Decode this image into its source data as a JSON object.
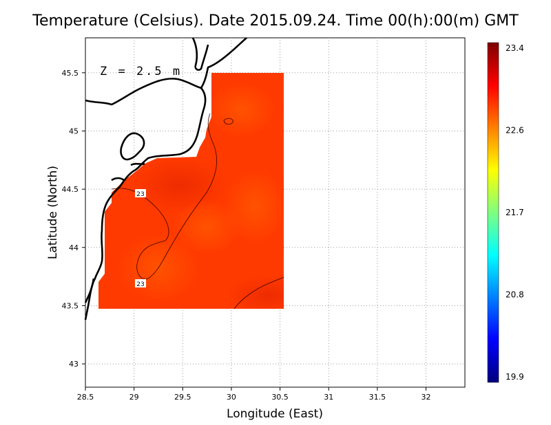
{
  "title": "Temperature (Celsius). Date 2015.09.24. Time 00(h):00(m) GMT",
  "depth_label": "Z = 2.5 m",
  "chart_data": {
    "type": "heatmap",
    "title": "Temperature (Celsius). Date 2015.09.24. Time 00(h):00(m) GMT",
    "xlabel": "Longitude (East)",
    "ylabel": "Latitude (North)",
    "xlim": [
      28.5,
      32.4
    ],
    "ylim": [
      42.8,
      45.8
    ],
    "x_ticks": [
      "28.5",
      "29",
      "29.5",
      "30",
      "30.5",
      "31",
      "31.5",
      "32"
    ],
    "y_ticks": [
      "43",
      "43.5",
      "44",
      "44.5",
      "45",
      "45.5"
    ],
    "grid": true,
    "colorbar": {
      "min": 19.9,
      "max": 23.4,
      "tick_labels": [
        "23.4",
        "22.6",
        "21.7",
        "20.8",
        "19.9"
      ],
      "colors": [
        "#00007f",
        "#0000ff",
        "#007fff",
        "#00ffff",
        "#7fff7f",
        "#ffff00",
        "#ff7f00",
        "#ff0000",
        "#7f0000"
      ]
    },
    "contour_labels": [
      "23",
      "23"
    ],
    "domain": {
      "lon_range": [
        28.6,
        30.52
      ],
      "lat_range": [
        43.48,
        45.5
      ]
    },
    "field_summary": {
      "dominant_value_range": [
        22.8,
        23.2
      ],
      "min_near_coast_lon": 29.7,
      "min_near_coast_lat": 45.05
    }
  }
}
